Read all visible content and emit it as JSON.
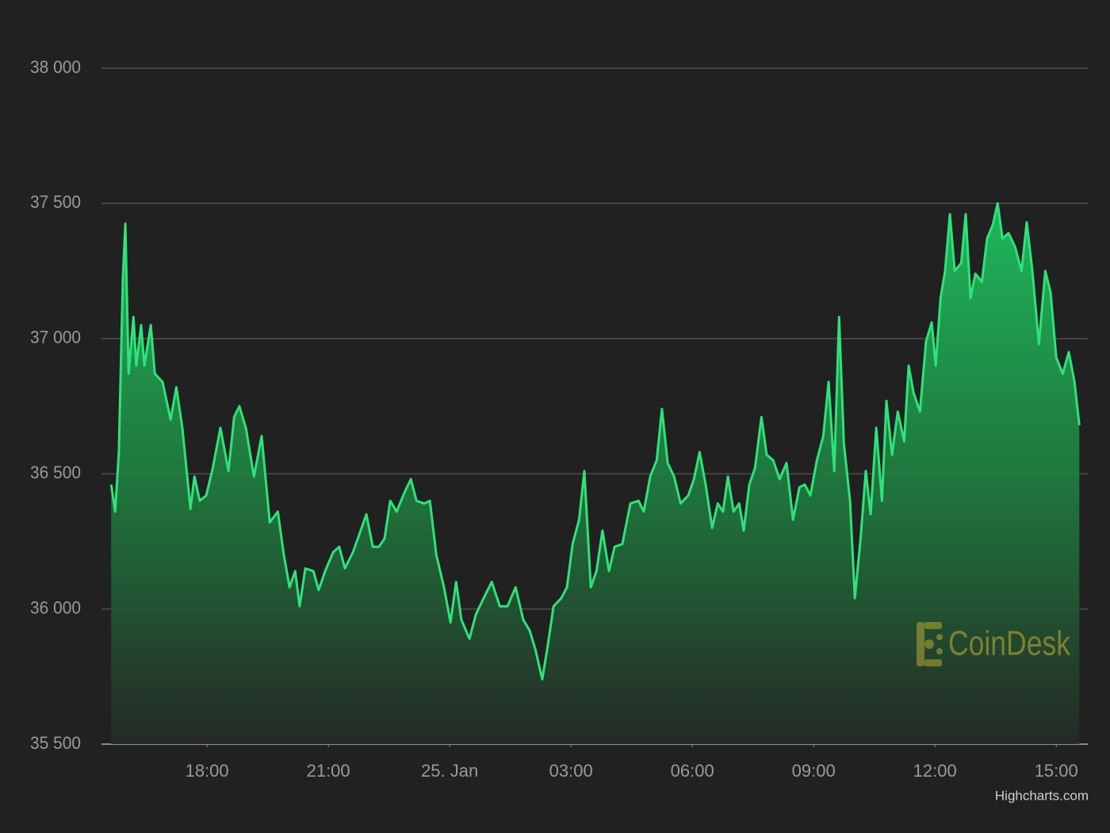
{
  "chart_data": {
    "type": "area",
    "x": [
      15.63,
      15.73,
      15.82,
      15.92,
      15.98,
      16.06,
      16.18,
      16.25,
      16.37,
      16.45,
      16.61,
      16.71,
      16.9,
      17.1,
      17.24,
      17.39,
      17.59,
      17.69,
      17.82,
      17.98,
      18.14,
      18.33,
      18.53,
      18.67,
      18.8,
      18.96,
      19.16,
      19.35,
      19.55,
      19.75,
      19.9,
      20.04,
      20.18,
      20.29,
      20.43,
      20.63,
      20.76,
      20.92,
      21.12,
      21.27,
      21.41,
      21.61,
      21.8,
      21.94,
      22.1,
      22.25,
      22.39,
      22.53,
      22.69,
      22.88,
      23.04,
      23.18,
      23.37,
      23.51,
      23.67,
      23.86,
      24.02,
      24.16,
      24.29,
      24.49,
      24.65,
      24.84,
      25.04,
      25.24,
      25.43,
      25.63,
      25.82,
      25.98,
      26.12,
      26.29,
      26.41,
      26.57,
      26.76,
      26.9,
      27.04,
      27.2,
      27.33,
      27.49,
      27.63,
      27.78,
      27.94,
      28.08,
      28.27,
      28.47,
      28.67,
      28.8,
      28.96,
      29.12,
      29.25,
      29.39,
      29.55,
      29.71,
      29.9,
      30.04,
      30.18,
      30.33,
      30.49,
      30.63,
      30.76,
      30.88,
      31.02,
      31.16,
      31.27,
      31.41,
      31.55,
      31.71,
      31.84,
      32.0,
      32.16,
      32.33,
      32.49,
      32.65,
      32.78,
      32.92,
      33.08,
      33.24,
      33.37,
      33.51,
      33.63,
      33.75,
      33.9,
      34.02,
      34.16,
      34.29,
      34.41,
      34.55,
      34.69,
      34.8,
      34.94,
      35.08,
      35.24,
      35.35,
      35.47,
      35.63,
      35.78,
      35.92,
      36.02,
      36.14,
      36.25,
      36.37,
      36.49,
      36.65,
      36.76,
      36.88,
      37.0,
      37.16,
      37.29,
      37.43,
      37.55,
      37.67,
      37.82,
      37.98,
      38.14,
      38.27,
      38.41,
      38.57,
      38.73,
      38.86,
      39.0,
      39.16,
      39.31,
      39.45,
      39.57
    ],
    "series": [
      {
        "color": "#2fe27a",
        "values": [
          36460,
          36360,
          36580,
          37225,
          37425,
          36870,
          37080,
          36900,
          37050,
          36900,
          37050,
          36870,
          36840,
          36700,
          36820,
          36670,
          36370,
          36490,
          36400,
          36420,
          36520,
          36670,
          36510,
          36710,
          36750,
          36670,
          36490,
          36640,
          36320,
          36360,
          36200,
          36080,
          36140,
          36010,
          36150,
          36140,
          36070,
          36140,
          36210,
          36230,
          36150,
          36210,
          36290,
          36350,
          36230,
          36230,
          36260,
          36400,
          36360,
          36430,
          36480,
          36400,
          36390,
          36400,
          36200,
          36080,
          35950,
          36100,
          35960,
          35890,
          35980,
          36040,
          36100,
          36010,
          36010,
          36080,
          35960,
          35920,
          35850,
          35740,
          35850,
          36010,
          36040,
          36080,
          36240,
          36330,
          36510,
          36080,
          36140,
          36290,
          36140,
          36230,
          36240,
          36390,
          36400,
          36360,
          36490,
          36550,
          36740,
          36540,
          36490,
          36390,
          36420,
          36480,
          36580,
          36460,
          36300,
          36390,
          36360,
          36490,
          36360,
          36390,
          36290,
          36460,
          36520,
          36710,
          36570,
          36550,
          36480,
          36540,
          36330,
          36450,
          36460,
          36420,
          36550,
          36640,
          36840,
          36510,
          37080,
          36610,
          36400,
          36040,
          36260,
          36510,
          36350,
          36670,
          36400,
          36770,
          36570,
          36730,
          36620,
          36900,
          36800,
          36730,
          36990,
          37060,
          36900,
          37150,
          37250,
          37460,
          37250,
          37280,
          37460,
          37150,
          37240,
          37210,
          37370,
          37420,
          37500,
          37370,
          37390,
          37340,
          37250,
          37430,
          37250,
          36980,
          37250,
          37170,
          36930,
          36870,
          36950,
          36840,
          36680
        ]
      }
    ],
    "xlim": [
      15.39,
      39.78
    ],
    "xticks": [
      {
        "value": 18,
        "label": "18:00"
      },
      {
        "value": 21,
        "label": "21:00"
      },
      {
        "value": 24,
        "label": "25. Jan"
      },
      {
        "value": 27,
        "label": "03:00"
      },
      {
        "value": 30,
        "label": "06:00"
      },
      {
        "value": 33,
        "label": "09:00"
      },
      {
        "value": 36,
        "label": "12:00"
      },
      {
        "value": 39,
        "label": "15:00"
      }
    ],
    "ylim": [
      35500,
      38000
    ],
    "yticks": [
      {
        "value": 35500,
        "label": "35 500"
      },
      {
        "value": 36000,
        "label": "36 000"
      },
      {
        "value": 36500,
        "label": "36 500"
      },
      {
        "value": 37000,
        "label": "37 000"
      },
      {
        "value": 37500,
        "label": "37 500"
      },
      {
        "value": 38000,
        "label": "38 000"
      }
    ],
    "grid": true,
    "watermark": "CoinDesk",
    "credits": "Highcharts.com"
  }
}
